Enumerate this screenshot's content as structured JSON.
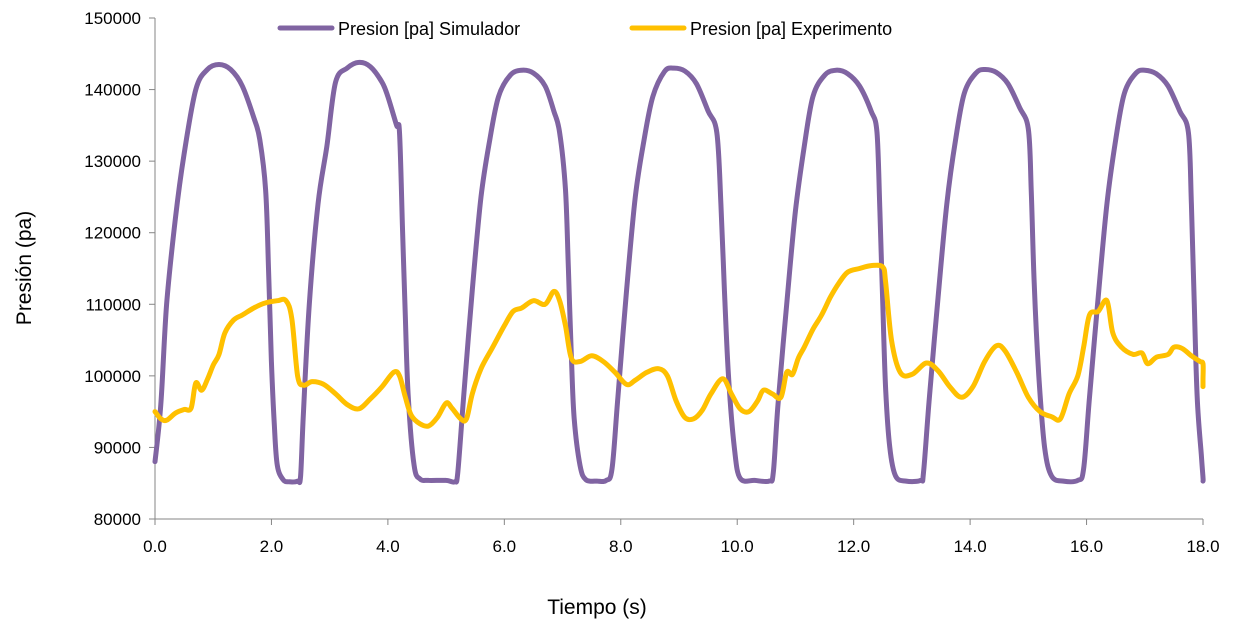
{
  "chart_data": {
    "type": "line",
    "title": "",
    "xlabel": "Tiempo (s)",
    "ylabel": "Presión (pa)",
    "xlim": [
      0,
      18
    ],
    "ylim": [
      80000,
      150000
    ],
    "x_ticks": [
      "0.0",
      "2.0",
      "4.0",
      "6.0",
      "8.0",
      "10.0",
      "12.0",
      "14.0",
      "16.0",
      "18.0"
    ],
    "y_ticks": [
      "80000",
      "90000",
      "100000",
      "110000",
      "120000",
      "130000",
      "140000",
      "150000"
    ],
    "grid": false,
    "legend_position": "top",
    "series": [
      {
        "name": "Presion [pa] Simulador",
        "color": "#8064A2",
        "points": [
          [
            0.0,
            88000
          ],
          [
            0.1,
            96000
          ],
          [
            0.2,
            110000
          ],
          [
            0.35,
            122000
          ],
          [
            0.5,
            131000
          ],
          [
            0.7,
            140000
          ],
          [
            0.9,
            142800
          ],
          [
            1.1,
            143500
          ],
          [
            1.3,
            142800
          ],
          [
            1.5,
            140500
          ],
          [
            1.7,
            136000
          ],
          [
            1.8,
            133000
          ],
          [
            1.9,
            126000
          ],
          [
            1.95,
            115000
          ],
          [
            2.0,
            102000
          ],
          [
            2.05,
            93000
          ],
          [
            2.1,
            87500
          ],
          [
            2.2,
            85500
          ],
          [
            2.3,
            85200
          ],
          [
            2.45,
            85300
          ],
          [
            2.5,
            86000
          ],
          [
            2.55,
            95000
          ],
          [
            2.65,
            110000
          ],
          [
            2.8,
            124000
          ],
          [
            2.95,
            132000
          ],
          [
            3.1,
            141000
          ],
          [
            3.3,
            143000
          ],
          [
            3.5,
            143800
          ],
          [
            3.7,
            143200
          ],
          [
            3.9,
            141000
          ],
          [
            4.0,
            139000
          ],
          [
            4.15,
            135000
          ],
          [
            4.2,
            134000
          ],
          [
            4.25,
            121000
          ],
          [
            4.3,
            108000
          ],
          [
            4.35,
            97000
          ],
          [
            4.45,
            87500
          ],
          [
            4.55,
            85600
          ],
          [
            4.7,
            85400
          ],
          [
            5.0,
            85400
          ],
          [
            5.15,
            85200
          ],
          [
            5.2,
            86500
          ],
          [
            5.3,
            97000
          ],
          [
            5.45,
            112000
          ],
          [
            5.6,
            125000
          ],
          [
            5.75,
            133000
          ],
          [
            5.9,
            139000
          ],
          [
            6.1,
            142000
          ],
          [
            6.3,
            142700
          ],
          [
            6.5,
            142300
          ],
          [
            6.7,
            140500
          ],
          [
            6.85,
            137000
          ],
          [
            6.95,
            134000
          ],
          [
            7.05,
            126000
          ],
          [
            7.1,
            115000
          ],
          [
            7.15,
            103000
          ],
          [
            7.2,
            94000
          ],
          [
            7.3,
            87500
          ],
          [
            7.4,
            85500
          ],
          [
            7.6,
            85300
          ],
          [
            7.75,
            85400
          ],
          [
            7.85,
            87000
          ],
          [
            7.95,
            97000
          ],
          [
            8.1,
            112000
          ],
          [
            8.25,
            125000
          ],
          [
            8.4,
            133000
          ],
          [
            8.55,
            139000
          ],
          [
            8.75,
            142500
          ],
          [
            8.9,
            143000
          ],
          [
            9.1,
            142600
          ],
          [
            9.3,
            140800
          ],
          [
            9.5,
            137000
          ],
          [
            9.65,
            134000
          ],
          [
            9.72,
            124000
          ],
          [
            9.78,
            112000
          ],
          [
            9.85,
            100000
          ],
          [
            9.95,
            90000
          ],
          [
            10.05,
            85700
          ],
          [
            10.3,
            85400
          ],
          [
            10.55,
            85300
          ],
          [
            10.62,
            86500
          ],
          [
            10.7,
            96000
          ],
          [
            10.85,
            110000
          ],
          [
            11.0,
            123000
          ],
          [
            11.15,
            132000
          ],
          [
            11.3,
            139000
          ],
          [
            11.5,
            142000
          ],
          [
            11.7,
            142700
          ],
          [
            11.9,
            142200
          ],
          [
            12.1,
            140500
          ],
          [
            12.3,
            137000
          ],
          [
            12.4,
            134000
          ],
          [
            12.45,
            123000
          ],
          [
            12.5,
            110000
          ],
          [
            12.55,
            98000
          ],
          [
            12.62,
            90000
          ],
          [
            12.72,
            86000
          ],
          [
            12.9,
            85300
          ],
          [
            13.15,
            85400
          ],
          [
            13.2,
            86500
          ],
          [
            13.3,
            97000
          ],
          [
            13.45,
            111000
          ],
          [
            13.6,
            124000
          ],
          [
            13.75,
            133000
          ],
          [
            13.9,
            139500
          ],
          [
            14.1,
            142300
          ],
          [
            14.25,
            142800
          ],
          [
            14.45,
            142400
          ],
          [
            14.65,
            140800
          ],
          [
            14.85,
            137500
          ],
          [
            15.0,
            134500
          ],
          [
            15.05,
            126000
          ],
          [
            15.1,
            113000
          ],
          [
            15.18,
            100000
          ],
          [
            15.28,
            90000
          ],
          [
            15.4,
            86000
          ],
          [
            15.6,
            85300
          ],
          [
            15.85,
            85400
          ],
          [
            15.95,
            87000
          ],
          [
            16.05,
            97000
          ],
          [
            16.2,
            111000
          ],
          [
            16.35,
            124000
          ],
          [
            16.5,
            133000
          ],
          [
            16.65,
            139500
          ],
          [
            16.85,
            142300
          ],
          [
            17.0,
            142700
          ],
          [
            17.2,
            142200
          ],
          [
            17.4,
            140500
          ],
          [
            17.6,
            137000
          ],
          [
            17.75,
            134000
          ],
          [
            17.8,
            124000
          ],
          [
            17.85,
            110000
          ],
          [
            17.9,
            97000
          ],
          [
            17.97,
            89000
          ],
          [
            18.05,
            85800
          ],
          [
            18.2,
            85300
          ]
        ]
      },
      {
        "name": "Presion [pa] Experimento",
        "color": "#FFC000",
        "points": [
          [
            0.0,
            95000
          ],
          [
            0.1,
            94000
          ],
          [
            0.2,
            93800
          ],
          [
            0.35,
            94800
          ],
          [
            0.5,
            95300
          ],
          [
            0.62,
            95500
          ],
          [
            0.7,
            99000
          ],
          [
            0.8,
            98000
          ],
          [
            0.9,
            99500
          ],
          [
            1.0,
            101500
          ],
          [
            1.1,
            103000
          ],
          [
            1.2,
            106000
          ],
          [
            1.35,
            107800
          ],
          [
            1.5,
            108500
          ],
          [
            1.7,
            109500
          ],
          [
            1.9,
            110200
          ],
          [
            2.1,
            110500
          ],
          [
            2.25,
            110500
          ],
          [
            2.35,
            108000
          ],
          [
            2.45,
            100000
          ],
          [
            2.55,
            98700
          ],
          [
            2.7,
            99200
          ],
          [
            2.9,
            98800
          ],
          [
            3.1,
            97500
          ],
          [
            3.3,
            96000
          ],
          [
            3.5,
            95400
          ],
          [
            3.7,
            96800
          ],
          [
            3.9,
            98500
          ],
          [
            4.1,
            100500
          ],
          [
            4.2,
            100000
          ],
          [
            4.3,
            97000
          ],
          [
            4.4,
            94500
          ],
          [
            4.55,
            93300
          ],
          [
            4.7,
            93000
          ],
          [
            4.85,
            94200
          ],
          [
            5.0,
            96200
          ],
          [
            5.1,
            95500
          ],
          [
            5.25,
            94000
          ],
          [
            5.35,
            94000
          ],
          [
            5.45,
            97500
          ],
          [
            5.6,
            101000
          ],
          [
            5.8,
            104000
          ],
          [
            6.0,
            107000
          ],
          [
            6.15,
            109000
          ],
          [
            6.3,
            109500
          ],
          [
            6.5,
            110500
          ],
          [
            6.7,
            110000
          ],
          [
            6.85,
            111800
          ],
          [
            6.95,
            110500
          ],
          [
            7.05,
            107000
          ],
          [
            7.15,
            102500
          ],
          [
            7.3,
            102000
          ],
          [
            7.5,
            102800
          ],
          [
            7.7,
            102000
          ],
          [
            7.9,
            100500
          ],
          [
            8.1,
            98800
          ],
          [
            8.25,
            99400
          ],
          [
            8.45,
            100500
          ],
          [
            8.65,
            101000
          ],
          [
            8.8,
            100000
          ],
          [
            8.95,
            96500
          ],
          [
            9.1,
            94200
          ],
          [
            9.25,
            94000
          ],
          [
            9.4,
            95200
          ],
          [
            9.55,
            97500
          ],
          [
            9.75,
            99600
          ],
          [
            9.9,
            97500
          ],
          [
            10.05,
            95400
          ],
          [
            10.2,
            95000
          ],
          [
            10.35,
            96500
          ],
          [
            10.45,
            98000
          ],
          [
            10.6,
            97500
          ],
          [
            10.75,
            97000
          ],
          [
            10.85,
            100500
          ],
          [
            10.95,
            100200
          ],
          [
            11.05,
            102500
          ],
          [
            11.15,
            104000
          ],
          [
            11.3,
            106500
          ],
          [
            11.45,
            108500
          ],
          [
            11.6,
            111000
          ],
          [
            11.75,
            113000
          ],
          [
            11.9,
            114500
          ],
          [
            12.1,
            115000
          ],
          [
            12.3,
            115400
          ],
          [
            12.5,
            115200
          ],
          [
            12.55,
            113000
          ],
          [
            12.65,
            105000
          ],
          [
            12.8,
            100500
          ],
          [
            13.0,
            100200
          ],
          [
            13.25,
            101800
          ],
          [
            13.45,
            100700
          ],
          [
            13.65,
            98500
          ],
          [
            13.85,
            97000
          ],
          [
            14.05,
            98500
          ],
          [
            14.25,
            102000
          ],
          [
            14.45,
            104200
          ],
          [
            14.6,
            103500
          ],
          [
            14.8,
            100500
          ],
          [
            15.0,
            97000
          ],
          [
            15.2,
            95000
          ],
          [
            15.4,
            94300
          ],
          [
            15.55,
            94000
          ],
          [
            15.7,
            97500
          ],
          [
            15.85,
            100000
          ],
          [
            15.95,
            104000
          ],
          [
            16.05,
            108500
          ],
          [
            16.2,
            109000
          ],
          [
            16.35,
            110500
          ],
          [
            16.45,
            106000
          ],
          [
            16.6,
            104000
          ],
          [
            16.8,
            103000
          ],
          [
            16.95,
            103200
          ],
          [
            17.05,
            101700
          ],
          [
            17.2,
            102600
          ],
          [
            17.4,
            103000
          ],
          [
            17.5,
            104000
          ],
          [
            17.65,
            103800
          ],
          [
            17.8,
            102800
          ],
          [
            17.95,
            102000
          ],
          [
            18.1,
            101700
          ],
          [
            18.2,
            99500
          ],
          [
            18.3,
            98500
          ]
        ]
      }
    ]
  }
}
